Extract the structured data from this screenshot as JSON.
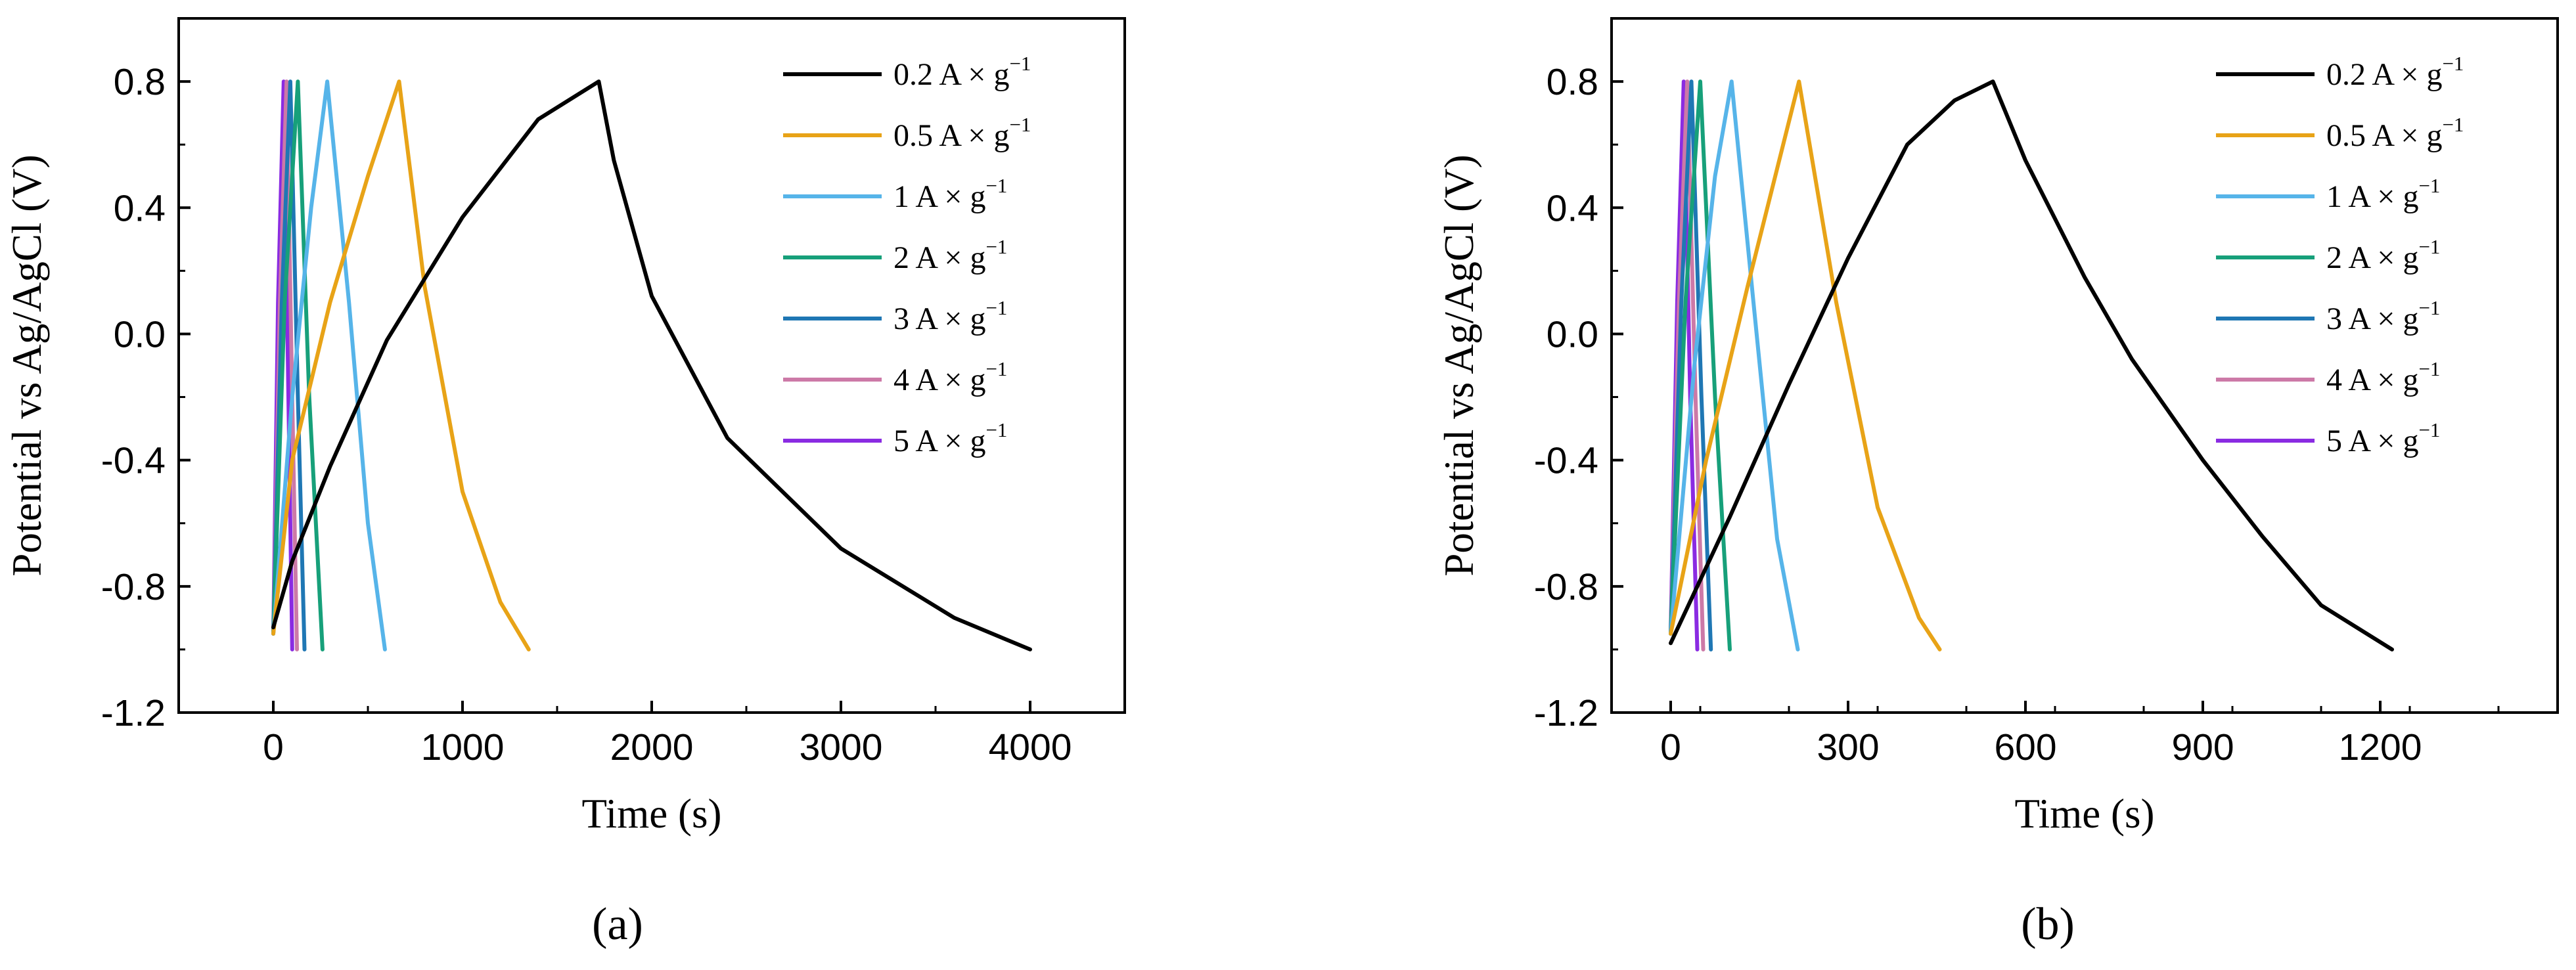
{
  "chart_data": [
    {
      "type": "line",
      "panel": "a",
      "panel_label": "(a)",
      "xlabel": "Time (s)",
      "ylabel": "Potential vs Ag/AgCl (V)",
      "xlim": [
        -500,
        4500
      ],
      "ylim": [
        -1.2,
        1.0
      ],
      "xticks": [
        0,
        1000,
        2000,
        3000,
        4000
      ],
      "xtick_labels": [
        "0",
        "1000",
        "2000",
        "3000",
        "4000"
      ],
      "yticks": [
        -1.2,
        -0.8,
        -0.4,
        0.0,
        0.4,
        0.8
      ],
      "ytick_labels": [
        "-1.2",
        "-0.8",
        "-0.4",
        "0.0",
        "0.4",
        "0.8"
      ],
      "legend_position": "top-right",
      "series": [
        {
          "name": "0.2 A × g",
          "sup": "−1",
          "color": "#000000",
          "x": [
            0,
            100,
            300,
            600,
            1000,
            1400,
            1720,
            1800,
            2000,
            2400,
            3000,
            3600,
            4000
          ],
          "y": [
            -0.93,
            -0.72,
            -0.42,
            -0.02,
            0.37,
            0.68,
            0.8,
            0.55,
            0.12,
            -0.33,
            -0.68,
            -0.9,
            -1.0
          ]
        },
        {
          "name": "0.5 A × g",
          "sup": "−1",
          "color": "#E8A317",
          "x": [
            0,
            100,
            300,
            500,
            665,
            800,
            1000,
            1200,
            1350
          ],
          "y": [
            -0.95,
            -0.4,
            0.1,
            0.5,
            0.8,
            0.15,
            -0.5,
            -0.85,
            -1.0
          ]
        },
        {
          "name": "1 A × g",
          "sup": "−1",
          "color": "#56B4E9",
          "x": [
            0,
            100,
            200,
            285,
            400,
            500,
            590
          ],
          "y": [
            -0.95,
            -0.2,
            0.4,
            0.8,
            0.1,
            -0.6,
            -1.0
          ]
        },
        {
          "name": "2 A × g",
          "sup": "−1",
          "color": "#17A07A",
          "x": [
            0,
            60,
            130,
            190,
            260
          ],
          "y": [
            -0.95,
            0.1,
            0.8,
            -0.2,
            -1.0
          ]
        },
        {
          "name": "3 A × g",
          "sup": "−1",
          "color": "#1F77B4",
          "x": [
            0,
            45,
            90,
            130,
            165
          ],
          "y": [
            -0.95,
            0.1,
            0.8,
            -0.2,
            -1.0
          ]
        },
        {
          "name": "4 A × g",
          "sup": "−1",
          "color": "#CC79A7",
          "x": [
            0,
            35,
            70,
            100,
            125
          ],
          "y": [
            -0.95,
            0.1,
            0.8,
            -0.2,
            -1.0
          ]
        },
        {
          "name": "5 A × g",
          "sup": "−1",
          "color": "#8A2BE2",
          "x": [
            0,
            25,
            55,
            80,
            100
          ],
          "y": [
            -0.95,
            0.1,
            0.8,
            -0.2,
            -1.0
          ]
        }
      ]
    },
    {
      "type": "line",
      "panel": "b",
      "panel_label": "(b)",
      "xlabel": "Time (s)",
      "ylabel": "Potential vs Ag/AgCl (V)",
      "xlim": [
        -100,
        1500
      ],
      "ylim": [
        -1.2,
        1.0
      ],
      "xticks": [
        0,
        300,
        600,
        900,
        1200
      ],
      "xtick_labels": [
        "0",
        "300",
        "600",
        "900",
        "1200"
      ],
      "yticks": [
        -1.2,
        -0.8,
        -0.4,
        0.0,
        0.4,
        0.8
      ],
      "ytick_labels": [
        "-1.2",
        "-0.8",
        "-0.4",
        "0.0",
        "0.4",
        "0.8"
      ],
      "legend_position": "top-right",
      "series": [
        {
          "name": "0.2 A × g",
          "sup": "−1",
          "color": "#000000",
          "x": [
            0,
            100,
            200,
            300,
            400,
            480,
            545,
            600,
            700,
            780,
            900,
            1000,
            1100,
            1220
          ],
          "y": [
            -0.98,
            -0.58,
            -0.16,
            0.24,
            0.6,
            0.74,
            0.8,
            0.55,
            0.18,
            -0.08,
            -0.4,
            -0.64,
            -0.86,
            -1.0
          ]
        },
        {
          "name": "0.5 A × g",
          "sup": "−1",
          "color": "#E8A317",
          "x": [
            0,
            60,
            130,
            217,
            280,
            350,
            420,
            455
          ],
          "y": [
            -0.95,
            -0.4,
            0.15,
            0.8,
            0.1,
            -0.55,
            -0.9,
            -1.0
          ]
        },
        {
          "name": "1 A × g",
          "sup": "−1",
          "color": "#56B4E9",
          "x": [
            0,
            40,
            75,
            103,
            140,
            180,
            215
          ],
          "y": [
            -0.95,
            -0.1,
            0.5,
            0.8,
            0.1,
            -0.65,
            -1.0
          ]
        },
        {
          "name": "2 A × g",
          "sup": "−1",
          "color": "#17A07A",
          "x": [
            0,
            25,
            50,
            75,
            100
          ],
          "y": [
            -0.95,
            0.1,
            0.8,
            -0.2,
            -1.0
          ]
        },
        {
          "name": "3 A × g",
          "sup": "−1",
          "color": "#1F77B4",
          "x": [
            0,
            18,
            35,
            52,
            68
          ],
          "y": [
            -0.95,
            0.1,
            0.8,
            -0.2,
            -1.0
          ]
        },
        {
          "name": "4 A × g",
          "sup": "−1",
          "color": "#CC79A7",
          "x": [
            0,
            14,
            28,
            42,
            55
          ],
          "y": [
            -0.95,
            0.1,
            0.8,
            -0.2,
            -1.0
          ]
        },
        {
          "name": "5 A × g",
          "sup": "−1",
          "color": "#8A2BE2",
          "x": [
            0,
            11,
            22,
            33,
            45
          ],
          "y": [
            -0.95,
            0.1,
            0.8,
            -0.2,
            -1.0
          ]
        }
      ]
    }
  ]
}
